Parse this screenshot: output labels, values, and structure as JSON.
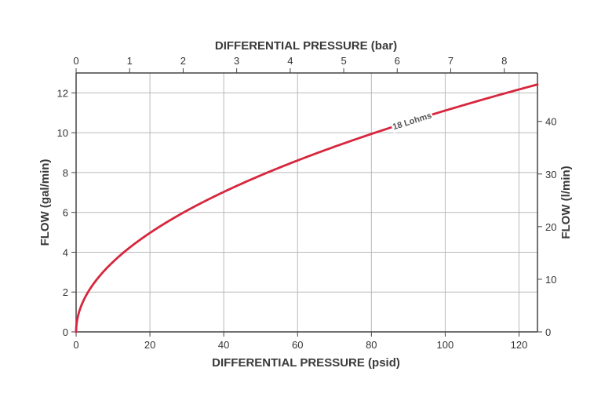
{
  "chart_data": {
    "type": "line",
    "x_bottom": {
      "label": "DIFFERENTIAL PRESSURE (psid)",
      "range": [
        0,
        125
      ],
      "ticks": [
        0,
        20,
        40,
        60,
        80,
        100,
        120
      ]
    },
    "x_top": {
      "label": "DIFFERENTIAL PRESSURE (bar)",
      "range": [
        0,
        8.62
      ],
      "ticks": [
        0,
        1,
        2,
        3,
        4,
        5,
        6,
        7,
        8
      ]
    },
    "y_left": {
      "label": "FLOW (gal/min)",
      "range": [
        0,
        13
      ],
      "ticks": [
        0,
        2,
        4,
        6,
        8,
        10,
        12
      ]
    },
    "y_right": {
      "label": "FLOW (l/min)",
      "range": [
        0,
        49.2
      ],
      "ticks": [
        0,
        10,
        20,
        30,
        40
      ]
    },
    "grid": true,
    "series": [
      {
        "name": "18 Lohms",
        "color": "#d7263d",
        "x": [
          0,
          1,
          2,
          5,
          10,
          15,
          20,
          25,
          30,
          40,
          50,
          60,
          70,
          80,
          90,
          100,
          110,
          120,
          125
        ],
        "y": [
          0,
          1.11,
          1.57,
          2.48,
          3.51,
          4.3,
          4.97,
          5.56,
          6.09,
          7.03,
          7.86,
          8.61,
          9.3,
          9.94,
          10.54,
          11.11,
          11.65,
          12.17,
          12.42
        ]
      }
    ],
    "annotation": {
      "text": "18 Lohms",
      "x": 91,
      "y": 10.6
    }
  }
}
